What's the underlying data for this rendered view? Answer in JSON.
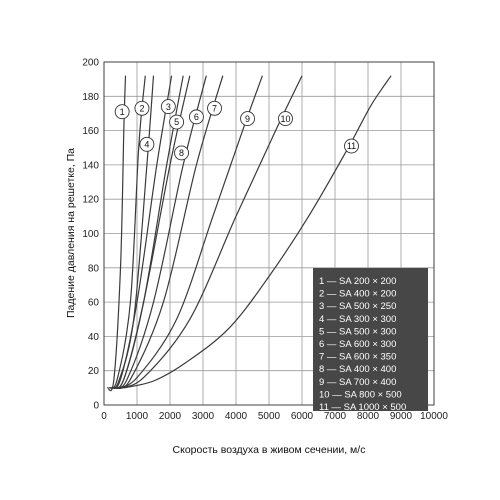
{
  "chart_data": {
    "type": "line",
    "title": "",
    "xlabel": "Скорость воздуха в живом сечении, м/с",
    "ylabel": "Падение давления на решетке, Па",
    "xlim": [
      0,
      10000
    ],
    "ylim": [
      0,
      200
    ],
    "xticks": [
      0,
      1000,
      2000,
      3000,
      4000,
      5000,
      6000,
      7000,
      8000,
      9000,
      10000
    ],
    "yticks": [
      0,
      20,
      40,
      60,
      80,
      100,
      120,
      140,
      160,
      180,
      200
    ],
    "grid": true,
    "legend_position": "bottom-right",
    "legend": [
      "1 — SA 200 × 200",
      "2 — SA 400 × 200",
      "3 — SA 500 × 250",
      "4 — SA 300 × 300",
      "5 — SA 500 × 300",
      "6 — SA 600 × 300",
      "7 — SA 600 × 350",
      "8 — SA 400 × 400",
      "9 — SA 700 × 400",
      "10 — SA 800 × 500",
      "11 — SA 1000 × 500"
    ],
    "series": [
      {
        "label": "1",
        "x": [
          100,
          300,
          500,
          600,
          650
        ],
        "y": [
          10,
          15,
          80,
          160,
          192
        ]
      },
      {
        "label": "2",
        "x": [
          150,
          400,
          800,
          1050,
          1250
        ],
        "y": [
          10,
          15,
          60,
          150,
          192
        ]
      },
      {
        "label": "3",
        "x": [
          200,
          500,
          1000,
          1600,
          2050
        ],
        "y": [
          10,
          15,
          60,
          140,
          192
        ]
      },
      {
        "label": "4",
        "x": [
          200,
          450,
          900,
          1300,
          1500
        ],
        "y": [
          10,
          14,
          50,
          140,
          192
        ]
      },
      {
        "label": "5",
        "x": [
          250,
          600,
          1200,
          1900,
          2400
        ],
        "y": [
          10,
          15,
          60,
          140,
          192
        ]
      },
      {
        "label": "6",
        "x": [
          300,
          700,
          1500,
          2400,
          3100
        ],
        "y": [
          10,
          15,
          60,
          140,
          192
        ]
      },
      {
        "label": "7",
        "x": [
          350,
          800,
          1800,
          2800,
          3600
        ],
        "y": [
          10,
          15,
          60,
          140,
          192
        ]
      },
      {
        "label": "8",
        "x": [
          250,
          600,
          1200,
          2000,
          2600
        ],
        "y": [
          10,
          15,
          60,
          140,
          192
        ]
      },
      {
        "label": "9",
        "x": [
          400,
          1000,
          2200,
          3300,
          4200,
          4800
        ],
        "y": [
          10,
          16,
          50,
          110,
          160,
          192
        ]
      },
      {
        "label": "10",
        "x": [
          450,
          1200,
          2600,
          4000,
          5200,
          6000
        ],
        "y": [
          10,
          16,
          50,
          110,
          160,
          192
        ]
      },
      {
        "label": "11",
        "x": [
          600,
          1500,
          2500,
          3800,
          5000,
          6200,
          7400,
          8100,
          8700
        ],
        "y": [
          10,
          14,
          25,
          45,
          75,
          110,
          150,
          175,
          192
        ]
      }
    ],
    "callouts": [
      {
        "label": "1",
        "x": 550,
        "y": 171
      },
      {
        "label": "2",
        "x": 1150,
        "y": 173
      },
      {
        "label": "3",
        "x": 1950,
        "y": 174
      },
      {
        "label": "4",
        "x": 1300,
        "y": 152
      },
      {
        "label": "5",
        "x": 2200,
        "y": 165
      },
      {
        "label": "6",
        "x": 2800,
        "y": 168
      },
      {
        "label": "7",
        "x": 3350,
        "y": 173
      },
      {
        "label": "8",
        "x": 2350,
        "y": 147
      },
      {
        "label": "9",
        "x": 4350,
        "y": 167
      },
      {
        "label": "10",
        "x": 5500,
        "y": 167
      },
      {
        "label": "11",
        "x": 7500,
        "y": 151
      }
    ]
  }
}
